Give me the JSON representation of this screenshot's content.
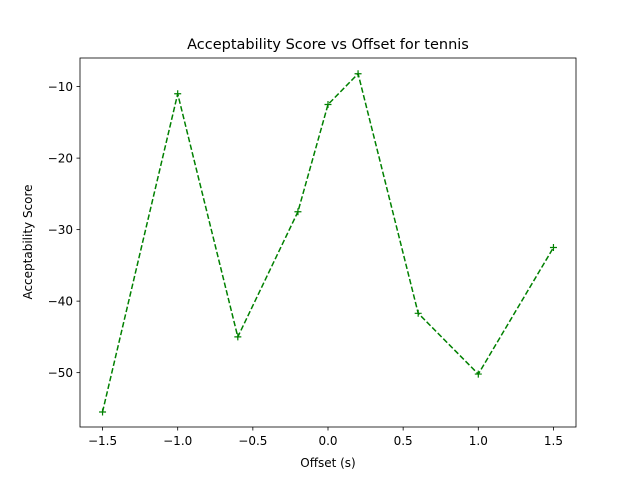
{
  "chart_data": {
    "type": "line",
    "title": "Acceptability Score vs Offset for tennis",
    "xlabel": "Offset (s)",
    "ylabel": "Acceptability Score",
    "xlim": [
      -1.65,
      1.65
    ],
    "ylim": [
      -57.6,
      -6.0
    ],
    "xticks": [
      -1.5,
      -1.0,
      -0.5,
      0.0,
      0.5,
      1.0,
      1.5
    ],
    "xtick_labels": [
      "−1.5",
      "−1.0",
      "−0.5",
      "0.0",
      "0.5",
      "1.0",
      "1.5"
    ],
    "yticks": [
      -50,
      -40,
      -30,
      -20,
      -10
    ],
    "ytick_labels": [
      "−50",
      "−40",
      "−30",
      "−20",
      "−10"
    ],
    "grid": false,
    "series": [
      {
        "color": "#008000",
        "line_style": "dashed",
        "marker": "plus",
        "x": [
          -1.5,
          -1.0,
          -0.6,
          -0.2,
          0.0,
          0.2,
          0.6,
          1.0,
          1.5
        ],
        "y": [
          -55.5,
          -11.0,
          -45.0,
          -27.5,
          -12.5,
          -8.2,
          -41.7,
          -50.2,
          -32.5
        ]
      }
    ]
  }
}
